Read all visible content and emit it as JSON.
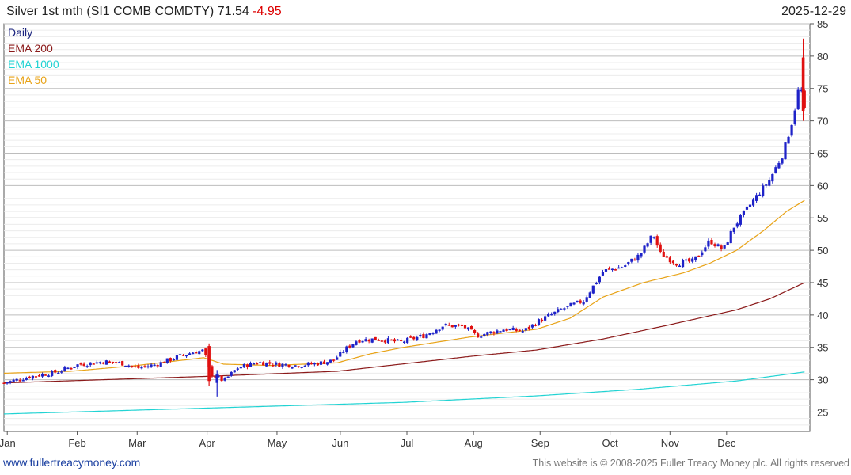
{
  "header": {
    "title": "Silver 1st mth (SI1 COMB COMDTY)",
    "last": "71.54",
    "change": "-4.95",
    "date": "2025-12-29"
  },
  "legend": {
    "items": [
      {
        "label": "Daily",
        "color": "#1a237e"
      },
      {
        "label": "EMA 200",
        "color": "#8b1a1a"
      },
      {
        "label": "EMA 1000",
        "color": "#22d3d3"
      },
      {
        "label": "EMA 50",
        "color": "#e8a317"
      }
    ]
  },
  "footer": {
    "site": "www.fullertreacymoney.com",
    "copyright": "This website is © 2008-2025 Fuller Treacy Money plc. All rights reserved"
  },
  "colors": {
    "up": "#1e22c8",
    "down": "#e01010",
    "grid": "#c8c8c8"
  },
  "chart_data": {
    "type": "candlestick",
    "title": "Silver 1st mth (SI1 COMB COMDTY)",
    "ylim": [
      22,
      85
    ],
    "yticks": [
      25,
      30,
      35,
      40,
      45,
      50,
      55,
      60,
      65,
      70,
      75,
      80,
      85
    ],
    "xlim": [
      0,
      12.1
    ],
    "months": [
      {
        "label": "Jan",
        "x": 0.05
      },
      {
        "label": "Feb",
        "x": 1.1
      },
      {
        "label": "Mar",
        "x": 2.0
      },
      {
        "label": "Apr",
        "x": 3.05
      },
      {
        "label": "May",
        "x": 4.1
      },
      {
        "label": "Jun",
        "x": 5.05
      },
      {
        "label": "Jul",
        "x": 6.05
      },
      {
        "label": "Aug",
        "x": 7.05
      },
      {
        "label": "Sep",
        "x": 8.05
      },
      {
        "label": "Oct",
        "x": 9.1
      },
      {
        "label": "Nov",
        "x": 10.0
      },
      {
        "label": "Dec",
        "x": 10.85
      }
    ],
    "close_anchors": [
      [
        0.0,
        29.5
      ],
      [
        0.4,
        30.5
      ],
      [
        0.8,
        31.2
      ],
      [
        1.1,
        32.3
      ],
      [
        1.5,
        32.8
      ],
      [
        1.8,
        32.5
      ],
      [
        2.0,
        31.8
      ],
      [
        2.3,
        32.4
      ],
      [
        2.6,
        33.5
      ],
      [
        2.85,
        34.3
      ],
      [
        3.0,
        34.5
      ],
      [
        3.1,
        31.0
      ],
      [
        3.3,
        29.8
      ],
      [
        3.5,
        31.8
      ],
      [
        3.8,
        32.7
      ],
      [
        4.1,
        32.4
      ],
      [
        4.4,
        32.2
      ],
      [
        4.7,
        32.5
      ],
      [
        4.95,
        33.0
      ],
      [
        5.1,
        34.5
      ],
      [
        5.3,
        36.1
      ],
      [
        5.6,
        36.3
      ],
      [
        5.95,
        35.8
      ],
      [
        6.3,
        36.8
      ],
      [
        6.6,
        38.4
      ],
      [
        6.9,
        38.2
      ],
      [
        7.1,
        36.8
      ],
      [
        7.5,
        37.8
      ],
      [
        7.8,
        37.5
      ],
      [
        8.05,
        39.2
      ],
      [
        8.4,
        41.0
      ],
      [
        8.7,
        42.2
      ],
      [
        9.0,
        46.8
      ],
      [
        9.3,
        47.5
      ],
      [
        9.55,
        49.3
      ],
      [
        9.75,
        52.5
      ],
      [
        9.85,
        49.5
      ],
      [
        10.1,
        48.0
      ],
      [
        10.35,
        48.3
      ],
      [
        10.6,
        51.5
      ],
      [
        10.8,
        50.0
      ],
      [
        10.95,
        53.5
      ],
      [
        11.2,
        57.0
      ],
      [
        11.5,
        61.0
      ],
      [
        11.7,
        65.0
      ],
      [
        11.85,
        70.5
      ],
      [
        11.95,
        76.0
      ],
      [
        12.02,
        71.54
      ]
    ],
    "ema50": [
      [
        0.0,
        31.0
      ],
      [
        1.0,
        31.3
      ],
      [
        2.0,
        32.2
      ],
      [
        3.0,
        33.4
      ],
      [
        3.3,
        32.4
      ],
      [
        4.0,
        32.2
      ],
      [
        5.0,
        32.6
      ],
      [
        5.5,
        34.0
      ],
      [
        6.0,
        35.0
      ],
      [
        7.0,
        36.6
      ],
      [
        8.0,
        37.8
      ],
      [
        8.5,
        39.5
      ],
      [
        9.0,
        42.8
      ],
      [
        9.6,
        45.0
      ],
      [
        10.2,
        46.5
      ],
      [
        10.6,
        48.0
      ],
      [
        11.0,
        50.0
      ],
      [
        11.4,
        53.0
      ],
      [
        11.75,
        56.0
      ],
      [
        12.02,
        57.7
      ]
    ],
    "ema200": [
      [
        0.0,
        29.5
      ],
      [
        3.0,
        30.5
      ],
      [
        5.0,
        31.3
      ],
      [
        7.0,
        33.6
      ],
      [
        8.0,
        34.6
      ],
      [
        9.0,
        36.3
      ],
      [
        10.0,
        38.5
      ],
      [
        11.0,
        40.8
      ],
      [
        11.5,
        42.5
      ],
      [
        12.02,
        45.0
      ]
    ],
    "ema1000": [
      [
        0.0,
        24.7
      ],
      [
        3.0,
        25.6
      ],
      [
        6.0,
        26.5
      ],
      [
        8.0,
        27.5
      ],
      [
        9.5,
        28.5
      ],
      [
        11.0,
        29.8
      ],
      [
        12.02,
        31.2
      ]
    ]
  }
}
